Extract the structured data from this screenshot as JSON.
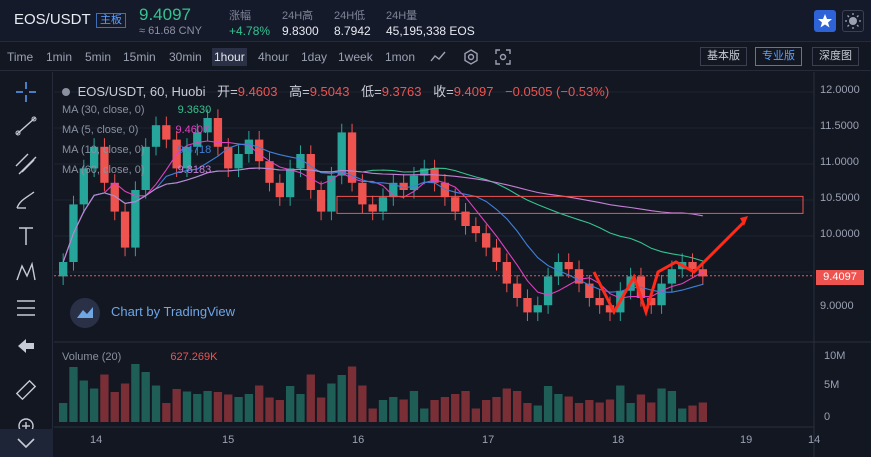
{
  "header": {
    "pair": "EOS/USDT",
    "board_tag": "主板",
    "price": "9.4097",
    "cny": "≈ 61.68 CNY",
    "stats": [
      {
        "label": "涨幅",
        "value": "+4.78%"
      },
      {
        "label": "24H高",
        "value": "9.8300"
      },
      {
        "label": "24H低",
        "value": "8.7942"
      },
      {
        "label": "24H量",
        "value": "45,195,338 EOS"
      }
    ]
  },
  "toolbar": {
    "timeframes": [
      "Time",
      "1min",
      "5min",
      "15min",
      "30min",
      "1hour",
      "4hour",
      "1day",
      "1week",
      "1mon"
    ],
    "active_timeframe": "1hour",
    "versions": [
      "基本版",
      "专业版",
      "深度图"
    ],
    "active_version": "专业版"
  },
  "chart_title": {
    "symbol": "EOS/USDT, 60, Huobi",
    "open_label": "开=",
    "open": "9.4603",
    "high_label": "高=",
    "high": "9.5043",
    "low_label": "低=",
    "low": "9.3763",
    "close_label": "收=",
    "close": "9.4097",
    "change": "−0.0505 (−0.53%)"
  },
  "indicators": [
    {
      "name": "MA (30, close, 0)",
      "value": "9.3630",
      "color": "#35c38f"
    },
    {
      "name": "MA (5, close, 0)",
      "value": "9.4607",
      "color": "#e040c0"
    },
    {
      "name": "MA (10, close, 0)",
      "value": "9.4718",
      "color": "#3f7fd9"
    },
    {
      "name": "MA (60, close, 0)",
      "value": "9.8183",
      "color": "#c47fd6"
    }
  ],
  "volume_legend": {
    "name": "Volume (20)",
    "value": "627.269K"
  },
  "watermark": "Chart by TradingView",
  "last_price_tag": "9.4097",
  "colors": {
    "up": "#26a69a",
    "down": "#ef5350",
    "accent": "#2d63d6"
  },
  "chart_data": {
    "type": "candlestick",
    "price_axis": [
      "12.0000",
      "11.5000",
      "11.0000",
      "10.5000",
      "10.0000",
      "9.0000"
    ],
    "price_ylim": [
      8.6,
      12.1
    ],
    "volume_axis": [
      "10M",
      "5M",
      "0"
    ],
    "x_ticks": [
      "14",
      "15",
      "16",
      "17",
      "18",
      "19",
      "14"
    ],
    "close_series": [
      9.6,
      10.4,
      10.9,
      11.2,
      10.7,
      10.3,
      9.8,
      10.6,
      11.2,
      11.5,
      11.3,
      10.9,
      11.2,
      11.4,
      11.6,
      11.2,
      10.9,
      11.1,
      11.3,
      11.0,
      10.7,
      10.5,
      10.9,
      11.1,
      10.6,
      10.3,
      10.8,
      11.4,
      10.7,
      10.4,
      10.3,
      10.5,
      10.7,
      10.6,
      10.8,
      10.9,
      10.7,
      10.5,
      10.3,
      10.1,
      10.0,
      9.8,
      9.6,
      9.3,
      9.1,
      8.9,
      9.0,
      9.4,
      9.6,
      9.5,
      9.3,
      9.1,
      9.0,
      8.9,
      9.2,
      9.4,
      9.1,
      9.0,
      9.3,
      9.5,
      9.6,
      9.5,
      9.4
    ]
  }
}
